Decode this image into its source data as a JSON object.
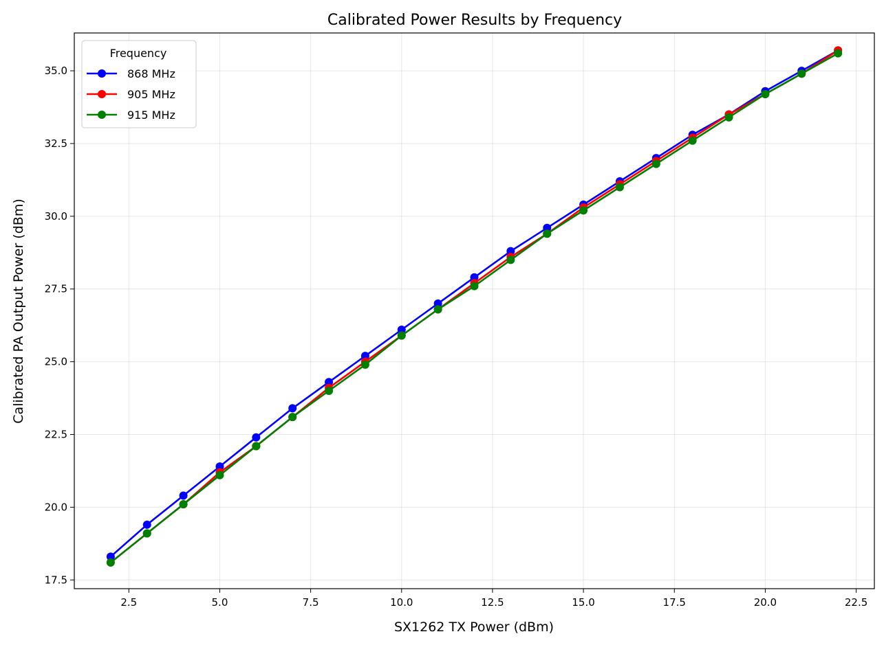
{
  "chart_data": {
    "type": "line",
    "title": "Calibrated Power Results by Frequency",
    "xlabel": "SX1262 TX Power (dBm)",
    "ylabel": "Calibrated PA Output Power (dBm)",
    "xlim": [
      1.0,
      23.0
    ],
    "ylim": [
      17.2,
      36.3
    ],
    "xticks": [
      2.5,
      5.0,
      7.5,
      10.0,
      12.5,
      15.0,
      17.5,
      20.0,
      22.5
    ],
    "yticks": [
      17.5,
      20.0,
      22.5,
      25.0,
      27.5,
      30.0,
      32.5,
      35.0
    ],
    "grid": true,
    "legend_title": "Frequency",
    "legend_position": "top-left",
    "x": [
      2,
      3,
      4,
      5,
      6,
      7,
      8,
      9,
      10,
      11,
      12,
      13,
      14,
      15,
      16,
      17,
      18,
      19,
      20,
      21,
      22
    ],
    "series": [
      {
        "name": "868 MHz",
        "color": "#0000ff",
        "values": [
          18.3,
          19.4,
          20.4,
          21.4,
          22.4,
          23.4,
          24.3,
          25.2,
          26.1,
          27.0,
          27.9,
          28.8,
          29.6,
          30.4,
          31.2,
          32.0,
          32.8,
          33.5,
          34.3,
          35.0,
          35.7
        ]
      },
      {
        "name": "905 MHz",
        "color": "#ff0000",
        "values": [
          18.1,
          19.1,
          20.1,
          21.2,
          22.1,
          23.1,
          24.1,
          25.0,
          25.9,
          26.8,
          27.7,
          28.6,
          29.4,
          30.3,
          31.1,
          31.9,
          32.7,
          33.5,
          34.2,
          34.9,
          35.7
        ]
      },
      {
        "name": "915 MHz",
        "color": "#008000",
        "values": [
          18.1,
          19.1,
          20.1,
          21.1,
          22.1,
          23.1,
          24.0,
          24.9,
          25.9,
          26.8,
          27.6,
          28.5,
          29.4,
          30.2,
          31.0,
          31.8,
          32.6,
          33.4,
          34.2,
          34.9,
          35.6
        ]
      }
    ]
  }
}
